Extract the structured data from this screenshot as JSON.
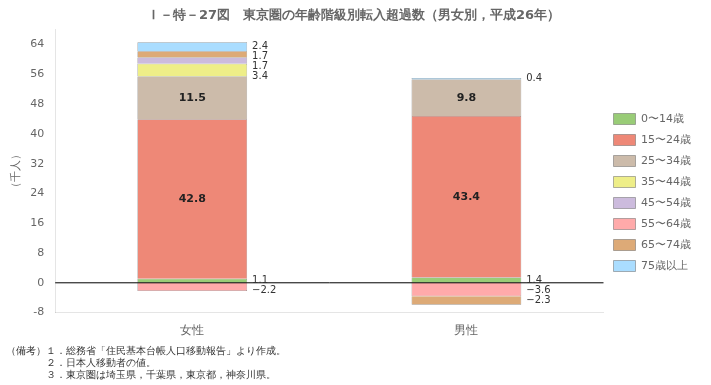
{
  "chart_data": {
    "type": "bar",
    "title": "Ｉ－特－27図　東京圏の年齢階級別転入超過数（男女別，平成26年）",
    "ylabel": "（千人）",
    "categories": [
      "女性",
      "男性"
    ],
    "series": [
      {
        "name": "0〜14歳",
        "color": "#99cc77",
        "values": [
          1.1,
          1.4
        ]
      },
      {
        "name": "15〜24歳",
        "color": "#ee8877",
        "values": [
          42.8,
          43.4
        ]
      },
      {
        "name": "25〜34歳",
        "color": "#ccbbaa",
        "values": [
          11.5,
          9.8
        ]
      },
      {
        "name": "35〜44歳",
        "color": "#eeee88",
        "values": [
          3.4,
          0.0
        ]
      },
      {
        "name": "45〜54歳",
        "color": "#ccbbdd",
        "values": [
          1.7,
          0.0
        ]
      },
      {
        "name": "55〜64歳",
        "color": "#ffaaaa",
        "values": [
          -2.2,
          -3.6
        ],
        "value_labels": [
          "−2.2",
          "−3.6"
        ]
      },
      {
        "name": "65〜74歳",
        "color": "#ddaa77",
        "values": [
          1.7,
          -2.3
        ],
        "value_labels": [
          "1.7",
          "−2.3"
        ]
      },
      {
        "name": "75歳以上",
        "color": "#aaddff",
        "values": [
          2.4,
          0.4
        ]
      }
    ],
    "stacked": true,
    "data_labels": true,
    "legend": "right",
    "grid": false,
    "ylim": [
      -8,
      68
    ],
    "yticks": [
      -8,
      0,
      8,
      16,
      24,
      32,
      40,
      48,
      56,
      64
    ],
    "notes": [
      "（備考）１．総務省「住民基本台帳人口移動報告」より作成。",
      "　　　　２．日本人移動者の値。",
      "　　　　３．東京圏は埼玉県，千葉県，東京都，神奈川県。"
    ]
  }
}
